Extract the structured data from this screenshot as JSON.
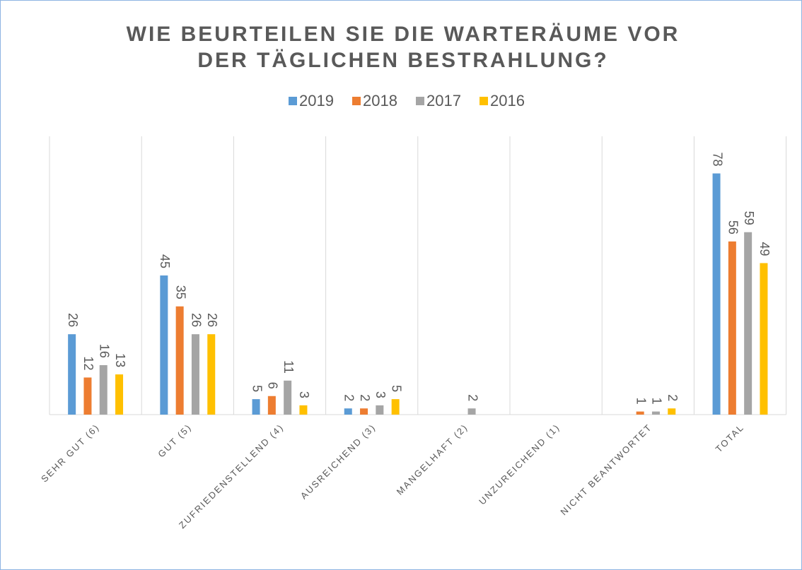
{
  "chart_data": {
    "type": "bar",
    "title": [
      "WIE BEURTEILEN SIE DIE WARTERÄUME VOR",
      "DER TÄGLICHEN BESTRAHLUNG?"
    ],
    "categories": [
      "SEHR GUT (6)",
      "GUT (5)",
      "ZUFRIEDENSTELLEND (4)",
      "AUSREICHEND (3)",
      "MANGELHAFT (2)",
      "UNZUREICHEND (1)",
      "NICHT BEANTWORTET",
      "TOTAL"
    ],
    "series": [
      {
        "name": "2019",
        "color": "#5b9bd5",
        "values": [
          26,
          45,
          5,
          2,
          null,
          null,
          null,
          78
        ]
      },
      {
        "name": "2018",
        "color": "#ed7d31",
        "values": [
          12,
          35,
          6,
          2,
          null,
          null,
          1,
          56
        ]
      },
      {
        "name": "2017",
        "color": "#a5a5a5",
        "values": [
          16,
          26,
          11,
          3,
          2,
          null,
          1,
          59
        ]
      },
      {
        "name": "2016",
        "color": "#ffc000",
        "values": [
          13,
          26,
          3,
          5,
          null,
          null,
          2,
          49
        ]
      }
    ],
    "ylim": [
      0,
      90
    ],
    "legend": "top"
  }
}
